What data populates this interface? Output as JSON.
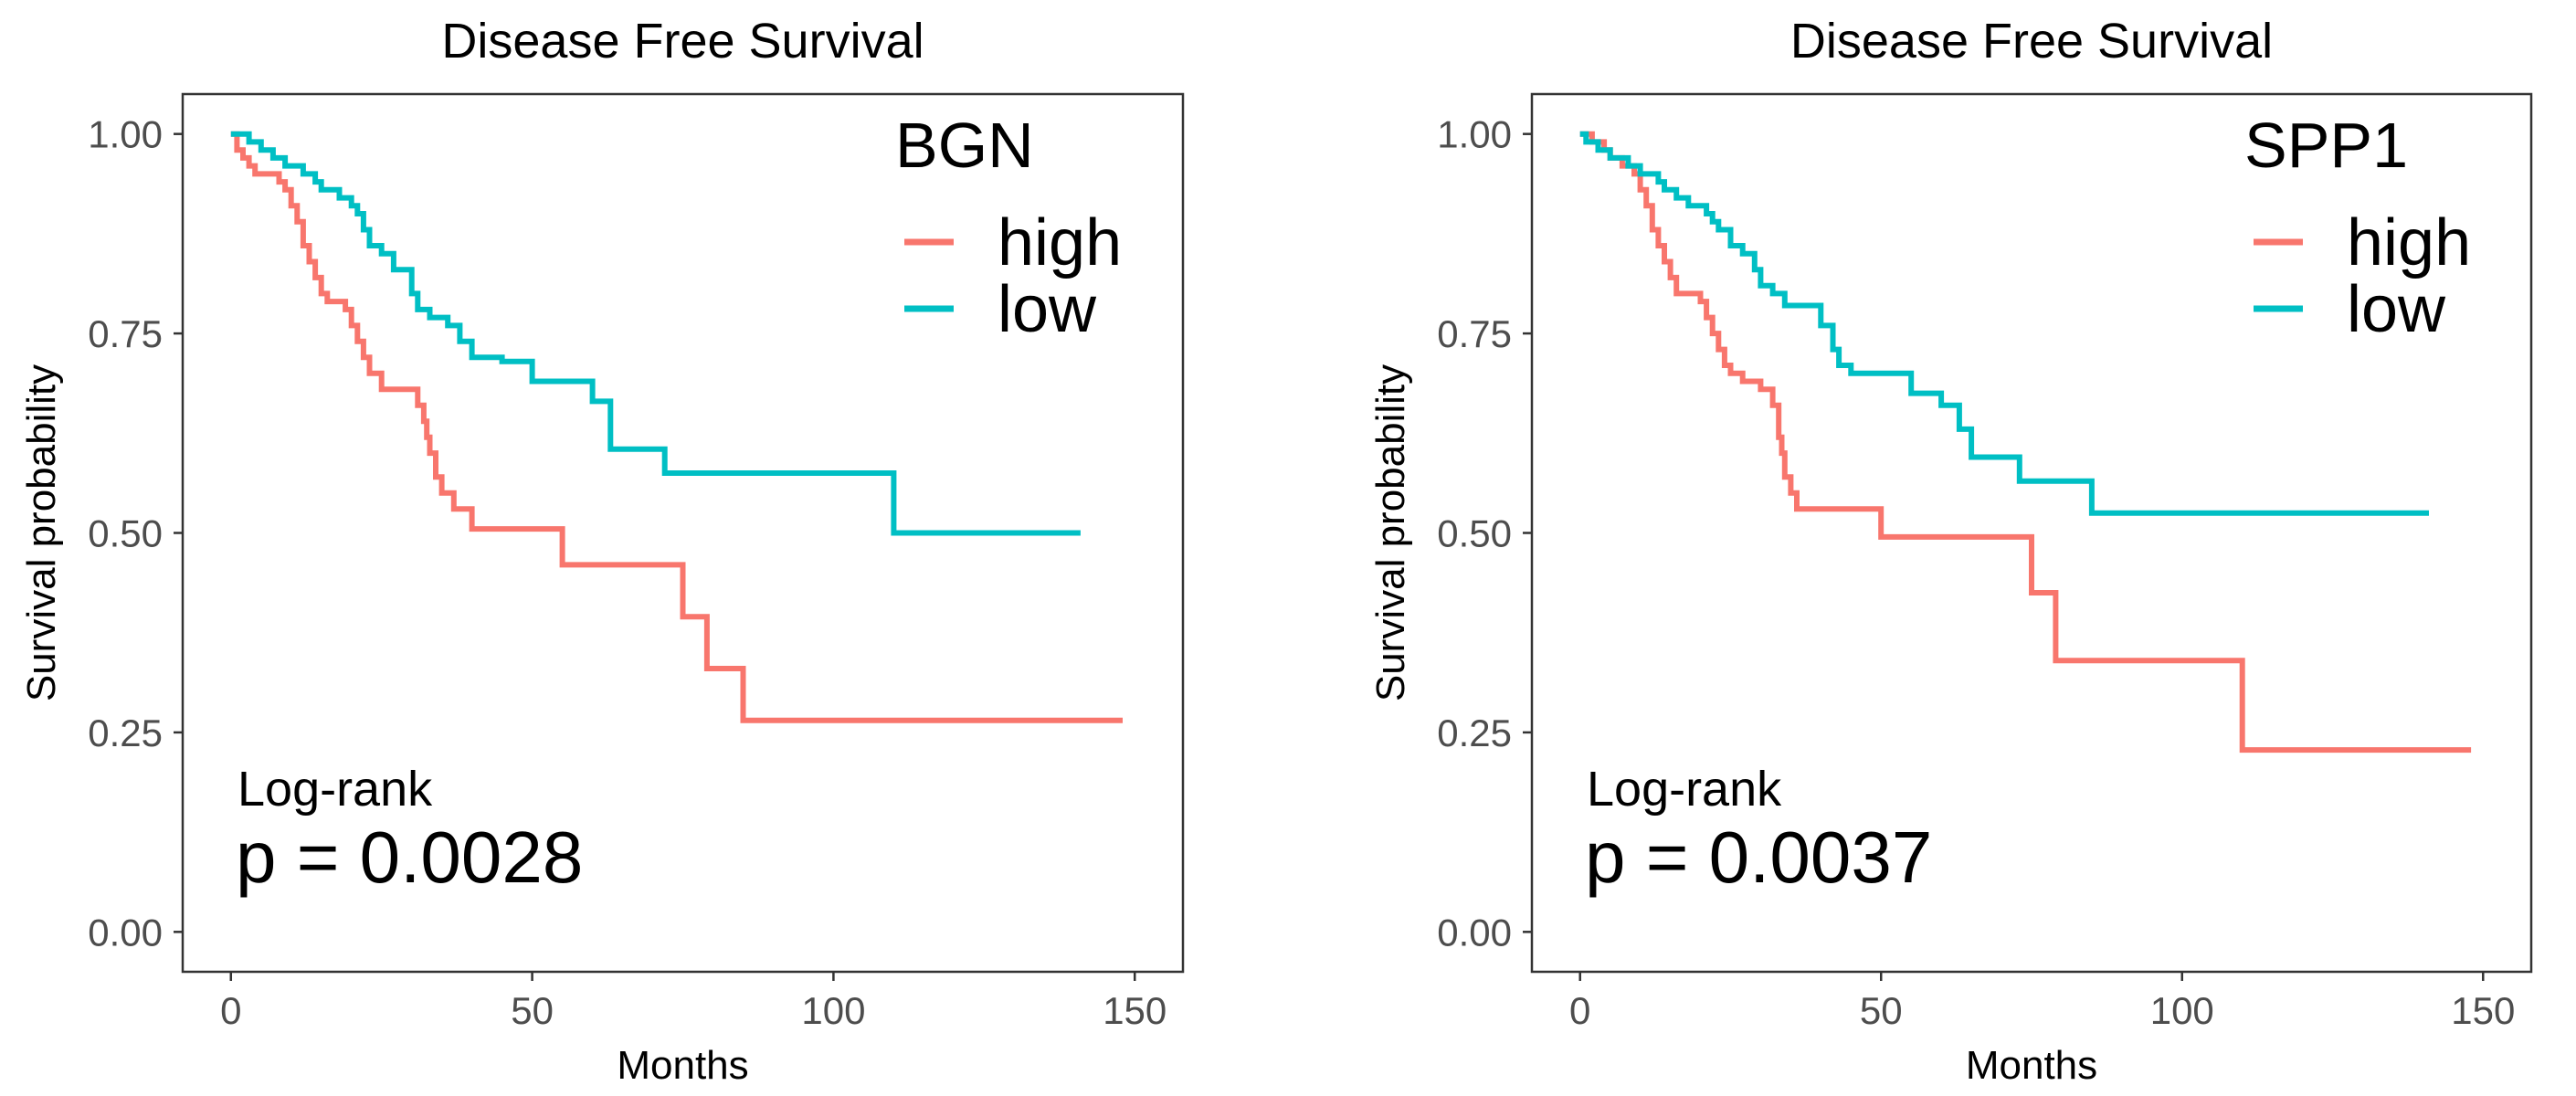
{
  "chart_data": [
    {
      "type": "line",
      "title": "Disease Free Survival",
      "xlabel": "Months",
      "ylabel": "Survival probability",
      "xlim": [
        -8,
        158
      ],
      "ylim": [
        -0.05,
        1.05
      ],
      "x_ticks": [
        0,
        50,
        100,
        150
      ],
      "x_tick_labels": [
        "0",
        "50",
        "100",
        "150"
      ],
      "y_ticks": [
        0,
        0.25,
        0.5,
        0.75,
        1
      ],
      "y_tick_labels": [
        "0.00",
        "0.25",
        "0.50",
        "0.75",
        "1.00"
      ],
      "grid": false,
      "legend": {
        "title": "BGN",
        "position": "top-right"
      },
      "annotation": {
        "method": "Log-rank",
        "p_value": "p = 0.0028"
      },
      "series": [
        {
          "name": "high",
          "color": "#F8766D",
          "step_points": [
            [
              0,
              1.0
            ],
            [
              1,
              0.98
            ],
            [
              2,
              0.97
            ],
            [
              3,
              0.96
            ],
            [
              4,
              0.95
            ],
            [
              8,
              0.94
            ],
            [
              9,
              0.93
            ],
            [
              10,
              0.91
            ],
            [
              11,
              0.89
            ],
            [
              12,
              0.86
            ],
            [
              13,
              0.84
            ],
            [
              14,
              0.82
            ],
            [
              15,
              0.8
            ],
            [
              16,
              0.79
            ],
            [
              19,
              0.78
            ],
            [
              20,
              0.76
            ],
            [
              21,
              0.74
            ],
            [
              22,
              0.72
            ],
            [
              23,
              0.7
            ],
            [
              25,
              0.68
            ],
            [
              31,
              0.66
            ],
            [
              32,
              0.64
            ],
            [
              32.5,
              0.62
            ],
            [
              33,
              0.6
            ],
            [
              34,
              0.57
            ],
            [
              35,
              0.55
            ],
            [
              37,
              0.53
            ],
            [
              40,
              0.505
            ],
            [
              55,
              0.46
            ],
            [
              75,
              0.395
            ],
            [
              79,
              0.33
            ],
            [
              85,
              0.265
            ],
            [
              148,
              0.265
            ]
          ]
        },
        {
          "name": "low",
          "color": "#00BFC4",
          "step_points": [
            [
              0,
              1.0
            ],
            [
              3,
              0.99
            ],
            [
              5,
              0.98
            ],
            [
              7,
              0.97
            ],
            [
              9,
              0.96
            ],
            [
              12,
              0.95
            ],
            [
              14,
              0.94
            ],
            [
              15,
              0.93
            ],
            [
              18,
              0.92
            ],
            [
              20,
              0.91
            ],
            [
              21,
              0.9
            ],
            [
              22,
              0.88
            ],
            [
              23,
              0.86
            ],
            [
              25,
              0.85
            ],
            [
              27,
              0.83
            ],
            [
              30,
              0.8
            ],
            [
              31,
              0.78
            ],
            [
              33,
              0.77
            ],
            [
              36,
              0.76
            ],
            [
              38,
              0.74
            ],
            [
              40,
              0.72
            ],
            [
              45,
              0.715
            ],
            [
              50,
              0.69
            ],
            [
              60,
              0.665
            ],
            [
              63,
              0.605
            ],
            [
              72,
              0.575
            ],
            [
              110,
              0.5
            ],
            [
              141,
              0.5
            ]
          ]
        }
      ]
    },
    {
      "type": "line",
      "title": "Disease Free Survival",
      "xlabel": "Months",
      "ylabel": "Survival probability",
      "xlim": [
        -8,
        158
      ],
      "ylim": [
        -0.05,
        1.05
      ],
      "x_ticks": [
        0,
        50,
        100,
        150
      ],
      "x_tick_labels": [
        "0",
        "50",
        "100",
        "150"
      ],
      "y_ticks": [
        0,
        0.25,
        0.5,
        0.75,
        1
      ],
      "y_tick_labels": [
        "0.00",
        "0.25",
        "0.50",
        "0.75",
        "1.00"
      ],
      "grid": false,
      "legend": {
        "title": "SPP1",
        "position": "top-right"
      },
      "annotation": {
        "method": "Log-rank",
        "p_value": "p = 0.0037"
      },
      "series": [
        {
          "name": "high",
          "color": "#F8766D",
          "step_points": [
            [
              0,
              1.0
            ],
            [
              2,
              0.99
            ],
            [
              4,
              0.98
            ],
            [
              5,
              0.97
            ],
            [
              7,
              0.96
            ],
            [
              9,
              0.95
            ],
            [
              10,
              0.93
            ],
            [
              11,
              0.91
            ],
            [
              12,
              0.88
            ],
            [
              13,
              0.86
            ],
            [
              14,
              0.84
            ],
            [
              15,
              0.82
            ],
            [
              16,
              0.8
            ],
            [
              20,
              0.79
            ],
            [
              21,
              0.77
            ],
            [
              22,
              0.75
            ],
            [
              23,
              0.73
            ],
            [
              24,
              0.71
            ],
            [
              25,
              0.7
            ],
            [
              27,
              0.69
            ],
            [
              30,
              0.68
            ],
            [
              32,
              0.66
            ],
            [
              33,
              0.62
            ],
            [
              33.5,
              0.6
            ],
            [
              34,
              0.57
            ],
            [
              35,
              0.55
            ],
            [
              36,
              0.53
            ],
            [
              50,
              0.495
            ],
            [
              75,
              0.425
            ],
            [
              79,
              0.34
            ],
            [
              110,
              0.228
            ],
            [
              148,
              0.228
            ]
          ]
        },
        {
          "name": "low",
          "color": "#00BFC4",
          "step_points": [
            [
              0,
              1.0
            ],
            [
              1,
              0.99
            ],
            [
              3,
              0.98
            ],
            [
              5,
              0.97
            ],
            [
              8,
              0.96
            ],
            [
              10,
              0.95
            ],
            [
              13,
              0.94
            ],
            [
              14,
              0.93
            ],
            [
              16,
              0.92
            ],
            [
              18,
              0.91
            ],
            [
              21,
              0.9
            ],
            [
              22,
              0.89
            ],
            [
              23,
              0.88
            ],
            [
              25,
              0.86
            ],
            [
              27,
              0.85
            ],
            [
              29,
              0.83
            ],
            [
              30,
              0.81
            ],
            [
              32,
              0.8
            ],
            [
              34,
              0.785
            ],
            [
              40,
              0.76
            ],
            [
              42,
              0.73
            ],
            [
              43,
              0.71
            ],
            [
              45,
              0.7
            ],
            [
              55,
              0.675
            ],
            [
              60,
              0.66
            ],
            [
              63,
              0.63
            ],
            [
              65,
              0.595
            ],
            [
              73,
              0.565
            ],
            [
              85,
              0.525
            ],
            [
              141,
              0.525
            ]
          ]
        }
      ]
    }
  ]
}
